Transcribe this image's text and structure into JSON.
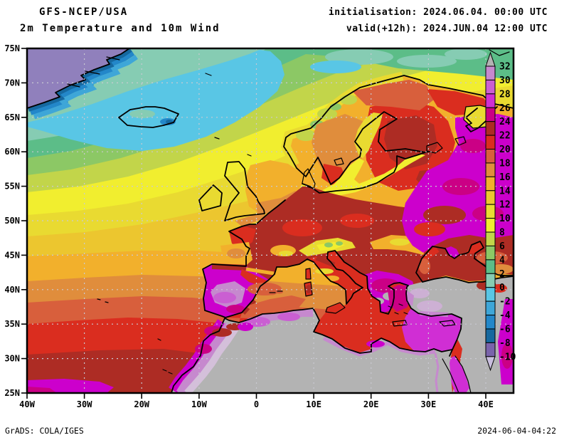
{
  "header": {
    "model_line": "GFS-NCEP/USA",
    "product_line": "2m Temperature and 10m Wind",
    "init_line": "initialisation: 2024.06.04. 00:00 UTC",
    "valid_line": "valid(+12h): 2024.JUN.04 12:00 UTC"
  },
  "axes": {
    "lat_labels": [
      "75N",
      "70N",
      "65N",
      "60N",
      "55N",
      "50N",
      "45N",
      "40N",
      "35N",
      "30N",
      "25N"
    ],
    "lon_labels": [
      "40W",
      "30W",
      "20W",
      "10W",
      "0",
      "10E",
      "20E",
      "30E",
      "40E"
    ]
  },
  "colorbar": {
    "tick_labels": [
      "32",
      "30",
      "28",
      "26",
      "24",
      "22",
      "20",
      "18",
      "16",
      "14",
      "12",
      "10",
      "8",
      "6",
      "4",
      "2",
      "0",
      "-2",
      "-4",
      "-6",
      "-8",
      "-10"
    ],
    "segment_colors": [
      "#c689ce",
      "#ca5fd2",
      "#d02ed4",
      "#cb0085",
      "#ad2c24",
      "#da2d1f",
      "#d85f3c",
      "#e08d3c",
      "#f2b02c",
      "#ecc62f",
      "#e9da31",
      "#f1ee2f",
      "#c2d54a",
      "#8cc865",
      "#5cbd88",
      "#86ccb3",
      "#59c6e5",
      "#3ea6d8",
      "#2387c9",
      "#16689f",
      "#7a63ab"
    ],
    "above_max_color": "#b3b3b3",
    "below_min_color": "#c9bede"
  },
  "footer": {
    "left": "GrADS: COLA/IGES",
    "right": "2024-06-04-04:22"
  },
  "chart_data": {
    "type": "heatmap",
    "title": "GFS-NCEP/USA 2m Temperature and 10m Wind",
    "initialisation": "2024.06.04. 00:00 UTC",
    "valid": "2024.JUN.04 12:00 UTC (+12h)",
    "lat_range": [
      "25N",
      "75N"
    ],
    "lon_range": [
      "40W",
      "40E"
    ],
    "lat_ticks_deg": [
      75,
      70,
      65,
      60,
      55,
      50,
      45,
      40,
      35,
      30,
      25
    ],
    "lon_ticks_deg": [
      -40,
      -30,
      -20,
      -10,
      0,
      10,
      20,
      30,
      40
    ],
    "contour_levels": [
      -10,
      -8,
      -6,
      -4,
      -2,
      0,
      2,
      4,
      6,
      8,
      10,
      12,
      14,
      16,
      18,
      20,
      22,
      24,
      26,
      28,
      30,
      32
    ],
    "legend_position": "right-inside",
    "grid": true,
    "notes": "Filled temperature contours over Europe/North Atlantic; gray = above 32, lavender = below -10"
  }
}
